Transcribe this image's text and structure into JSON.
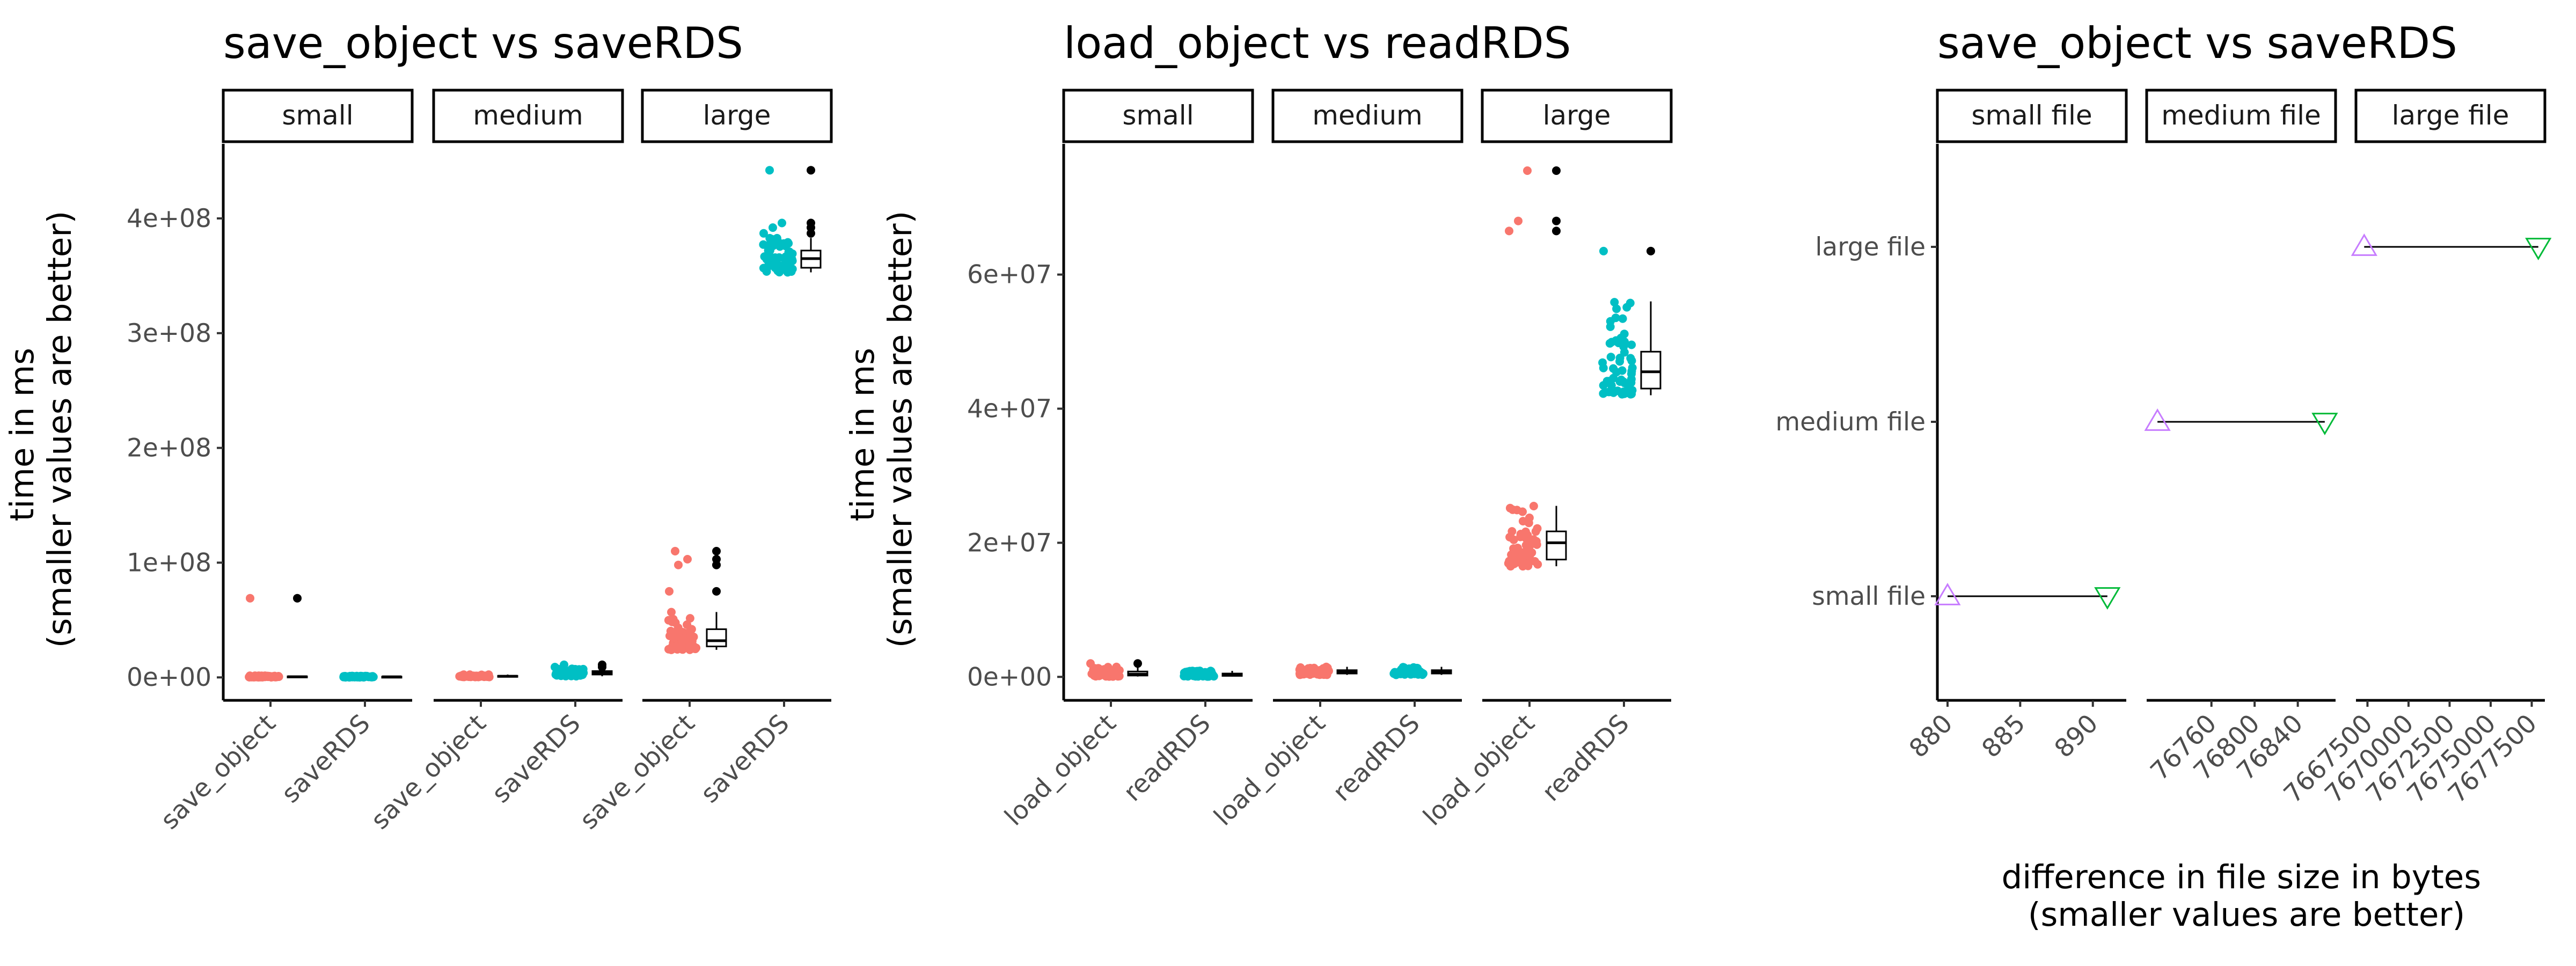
{
  "colors": {
    "save_load": "#F8766D",
    "rds": "#00BFC4",
    "up_triangle": "#C77CFF",
    "down_triangle": "#00BA38",
    "outlier": "#000000",
    "axis": "#000000"
  },
  "chart_data": [
    {
      "type": "scatter",
      "title": "save_object vs saveRDS",
      "ylabel": "time in ms\n(smaller values are better)",
      "facets": [
        "small",
        "medium",
        "large"
      ],
      "categories": [
        "save_object",
        "saveRDS"
      ],
      "ylim": [
        -20000000,
        465000000
      ],
      "yticks": [
        0,
        100000000,
        200000000,
        300000000,
        400000000
      ],
      "yticklabels": [
        "0e+00",
        "1e+08",
        "2e+08",
        "3e+08",
        "4e+08"
      ],
      "boxplot_overlay": true,
      "series": [
        {
          "facet": "small",
          "points": [
            {
              "category": "save_object",
              "median": 600000,
              "q1": 300000,
              "q3": 900000,
              "min": 100000,
              "max": 1500000,
              "outliers": [
                69000000
              ]
            },
            {
              "category": "saveRDS",
              "median": 500000,
              "q1": 300000,
              "q3": 700000,
              "min": 100000,
              "max": 1200000,
              "outliers": []
            }
          ]
        },
        {
          "facet": "medium",
          "points": [
            {
              "category": "save_object",
              "median": 1000000,
              "q1": 700000,
              "q3": 1400000,
              "min": 300000,
              "max": 2500000,
              "outliers": []
            },
            {
              "category": "saveRDS",
              "median": 4000000,
              "q1": 2500000,
              "q3": 5500000,
              "min": 1000000,
              "max": 7500000,
              "outliers": [
                9000000,
                11000000
              ]
            }
          ]
        },
        {
          "facet": "large",
          "points": [
            {
              "category": "save_object",
              "median": 32000000,
              "q1": 27000000,
              "q3": 42000000,
              "min": 24000000,
              "max": 57000000,
              "outliers": [
                75000000,
                98000000,
                103000000,
                110000000
              ]
            },
            {
              "category": "saveRDS",
              "median": 365000000,
              "q1": 357000000,
              "q3": 372000000,
              "min": 353000000,
              "max": 383000000,
              "outliers": [
                387000000,
                392000000,
                396000000,
                442000000
              ]
            }
          ]
        }
      ]
    },
    {
      "type": "scatter",
      "title": "load_object vs readRDS",
      "ylabel": "time in ms\n(smaller values are better)",
      "facets": [
        "small",
        "medium",
        "large"
      ],
      "categories": [
        "load_object",
        "readRDS"
      ],
      "ylim": [
        -3500000,
        79500000
      ],
      "yticks": [
        0,
        20000000,
        40000000,
        60000000
      ],
      "yticklabels": [
        "0e+00",
        "2e+07",
        "4e+07",
        "6e+07"
      ],
      "boxplot_overlay": true,
      "series": [
        {
          "facet": "small",
          "points": [
            {
              "category": "load_object",
              "median": 400000,
              "q1": 200000,
              "q3": 800000,
              "min": 50000,
              "max": 1500000,
              "outliers": [
                2000000
              ]
            },
            {
              "category": "readRDS",
              "median": 300000,
              "q1": 150000,
              "q3": 500000,
              "min": 50000,
              "max": 900000,
              "outliers": []
            }
          ]
        },
        {
          "facet": "medium",
          "points": [
            {
              "category": "load_object",
              "median": 700000,
              "q1": 500000,
              "q3": 1000000,
              "min": 300000,
              "max": 1500000,
              "outliers": []
            },
            {
              "category": "readRDS",
              "median": 700000,
              "q1": 500000,
              "q3": 1000000,
              "min": 300000,
              "max": 1500000,
              "outliers": []
            }
          ]
        },
        {
          "facet": "large",
          "points": [
            {
              "category": "load_object",
              "median": 20000000,
              "q1": 17500000,
              "q3": 21700000,
              "min": 16500000,
              "max": 25500000,
              "outliers": [
                66500000,
                68000000,
                75500000
              ]
            },
            {
              "category": "readRDS",
              "median": 45500000,
              "q1": 43000000,
              "q3": 48500000,
              "min": 42000000,
              "max": 56000000,
              "outliers": [
                63500000
              ]
            }
          ]
        }
      ]
    },
    {
      "type": "scatter",
      "title": "save_object vs saveRDS",
      "xlabel": "difference in file size in bytes\n(smaller values are better)",
      "facets": [
        "small file",
        "medium file",
        "large file"
      ],
      "categories": [
        "small file",
        "medium file",
        "large file"
      ],
      "series": [
        {
          "facet": "small file",
          "category": "small file",
          "xlim": [
            879.3,
            892.3
          ],
          "xticks": [
            880,
            885,
            890
          ],
          "xticklabels": [
            "880",
            "885",
            "890"
          ],
          "up_triangle": 880,
          "down_triangle": 891
        },
        {
          "facet": "medium file",
          "category": "medium file",
          "xlim": [
            76700,
            76875
          ],
          "xticks": [
            76760,
            76800,
            76840
          ],
          "xticklabels": [
            "76760",
            "76800",
            "76840"
          ],
          "up_triangle": 76710,
          "down_triangle": 76865
        },
        {
          "facet": "large file",
          "category": "large file",
          "xlim": [
            7666800,
            7678300
          ],
          "xticks": [
            7667500,
            7670000,
            7672500,
            7675000,
            7677500
          ],
          "xticklabels": [
            "7667500",
            "7670000",
            "7672500",
            "7675000",
            "7677500"
          ],
          "up_triangle": 7667300,
          "down_triangle": 7677900
        }
      ]
    }
  ]
}
